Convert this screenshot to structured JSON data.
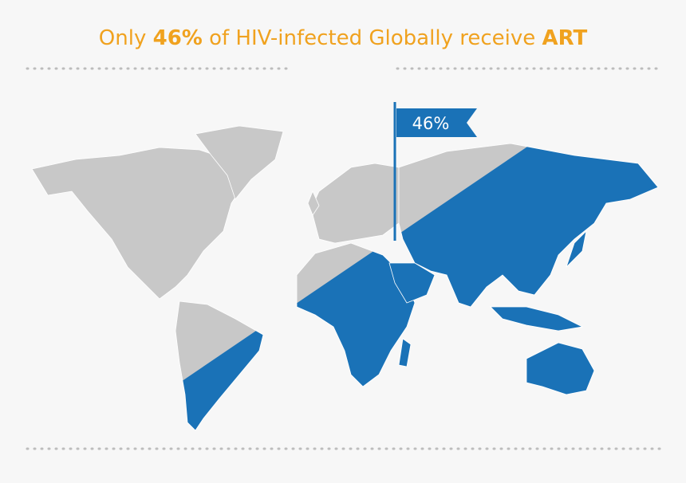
{
  "title": {
    "segments": [
      "Only",
      "46%",
      "of HIV-infected Globally receive",
      "ART"
    ]
  },
  "flag": {
    "label": "46%"
  }
}
